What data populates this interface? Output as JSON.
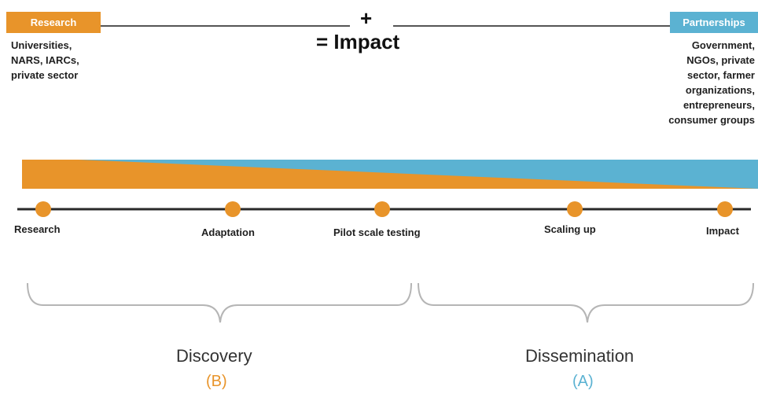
{
  "colors": {
    "research_orange": "#e8942a",
    "partnership_blue": "#5bb2d2",
    "line": "#2a2a2a",
    "bracket": "#b5b5b5"
  },
  "header": {
    "research_tag": "Research",
    "partnerships_tag": "Partnerships",
    "plus": "+",
    "impact": "= Impact"
  },
  "research_block": {
    "lines": [
      "Universities,",
      "NARS, IARCs,",
      "private sector"
    ]
  },
  "partnerships_block": {
    "lines": [
      "Government,",
      "NGOs, private",
      "sector, farmer",
      "organizations,",
      "entrepreneurs,",
      "consumer groups"
    ]
  },
  "timeline": {
    "stages": [
      "Research",
      "Adaptation",
      "Pilot scale testing",
      "Scaling up",
      "Impact"
    ]
  },
  "phases": {
    "discovery": {
      "label": "Discovery",
      "letter": "(B)"
    },
    "dissemination": {
      "label": "Dissemination",
      "letter": "(A)"
    }
  }
}
